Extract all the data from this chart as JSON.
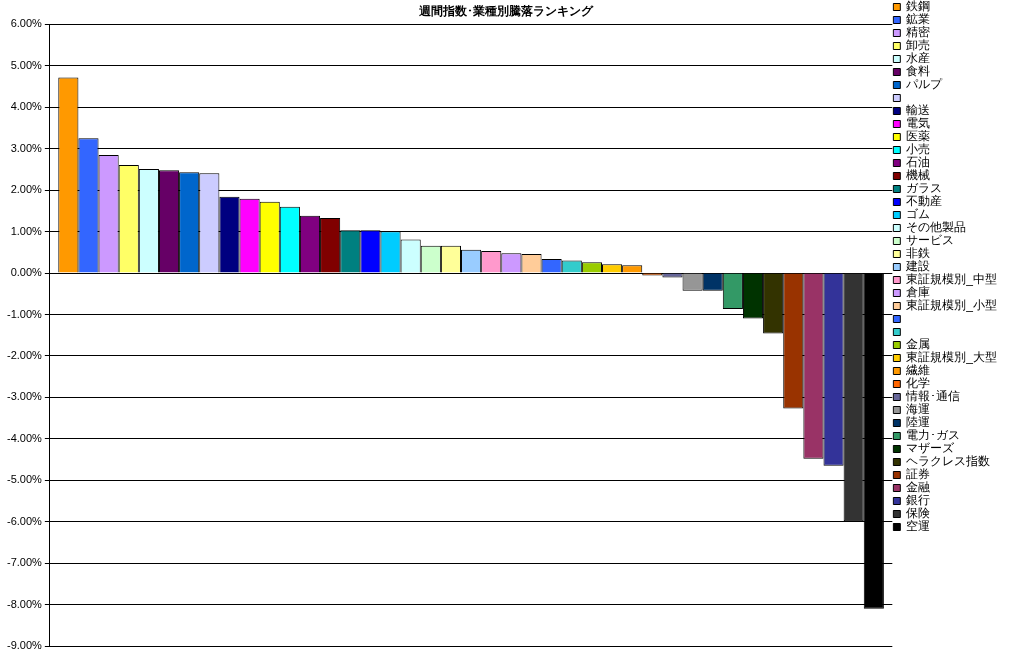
{
  "chart_data": {
    "type": "bar",
    "title": "週間指数･業種別騰落ランキング",
    "categories": [
      null
    ],
    "ylim": [
      -9,
      6
    ],
    "yticks": [
      {
        "value": -9,
        "label": "-9.00%"
      },
      {
        "value": -8,
        "label": "-8.00%"
      },
      {
        "value": -7,
        "label": "-7.00%"
      },
      {
        "value": -6,
        "label": "-6.00%"
      },
      {
        "value": -5,
        "label": "-5.00%"
      },
      {
        "value": -4,
        "label": "-4.00%"
      },
      {
        "value": -3,
        "label": "-3.00%"
      },
      {
        "value": -2,
        "label": "-2.00%"
      },
      {
        "value": -1,
        "label": "-1.00%"
      },
      {
        "value": 0,
        "label": "0.00%"
      },
      {
        "value": 1,
        "label": "1.00%"
      },
      {
        "value": 2,
        "label": "2.00%"
      },
      {
        "value": 3,
        "label": "3.00%"
      },
      {
        "value": 4,
        "label": "4.00%"
      },
      {
        "value": 5,
        "label": "5.00%"
      },
      {
        "value": 6,
        "label": "6.00%"
      }
    ],
    "grid": "y",
    "legend": "right",
    "series": [
      {
        "name": "鉄鋼",
        "color": "#ff9900",
        "values": [
          4.72
        ]
      },
      {
        "name": "鉱業",
        "color": "#3366ff",
        "values": [
          3.25
        ]
      },
      {
        "name": "精密",
        "color": "#cc99ff",
        "values": [
          2.85
        ]
      },
      {
        "name": "卸売",
        "color": "#ffff66",
        "values": [
          2.61
        ]
      },
      {
        "name": "水産",
        "color": "#ccffff",
        "values": [
          2.51
        ]
      },
      {
        "name": "食料",
        "color": "#660066",
        "values": [
          2.48
        ]
      },
      {
        "name": "パルプ",
        "color": "#0066cc",
        "values": [
          2.43
        ]
      },
      {
        "color": "#ccccff",
        "values": [
          2.41
        ]
      },
      {
        "name": "輸送",
        "color": "#000080",
        "values": [
          1.84
        ]
      },
      {
        "name": "電気",
        "color": "#ff00ff",
        "values": [
          1.79
        ]
      },
      {
        "name": "医薬",
        "color": "#ffff00",
        "values": [
          1.72
        ]
      },
      {
        "name": "小売",
        "color": "#00ffff",
        "values": [
          1.6
        ]
      },
      {
        "name": "石油",
        "color": "#800080",
        "values": [
          1.38
        ]
      },
      {
        "name": "機械",
        "color": "#800000",
        "values": [
          1.33
        ]
      },
      {
        "name": "ガラス",
        "color": "#008080",
        "values": [
          1.03
        ]
      },
      {
        "name": "不動産",
        "color": "#0000ff",
        "values": [
          1.03
        ]
      },
      {
        "name": "ゴム",
        "color": "#00ccff",
        "values": [
          1.01
        ]
      },
      {
        "name": "その他製品",
        "color": "#ccffff",
        "values": [
          0.81
        ]
      },
      {
        "name": "サービス",
        "color": "#ccffcc",
        "values": [
          0.66
        ]
      },
      {
        "name": "非鉄",
        "color": "#ffff99",
        "values": [
          0.66
        ]
      },
      {
        "name": "建設",
        "color": "#99ccff",
        "values": [
          0.56
        ]
      },
      {
        "name": "東証規模別_中型",
        "color": "#ff99cc",
        "values": [
          0.53
        ]
      },
      {
        "name": "倉庫",
        "color": "#cc99ff",
        "values": [
          0.48
        ]
      },
      {
        "name": "東証規模別_小型",
        "color": "#ffcc99",
        "values": [
          0.46
        ]
      },
      {
        "color": "#3366ff",
        "values": [
          0.34
        ]
      },
      {
        "color": "#33cccc",
        "values": [
          0.3
        ]
      },
      {
        "name": "金属",
        "color": "#99cc00",
        "values": [
          0.26
        ]
      },
      {
        "name": "東証規模別_大型",
        "color": "#ffcc00",
        "values": [
          0.21
        ]
      },
      {
        "name": "繊維",
        "color": "#ff9900",
        "values": [
          0.19
        ]
      },
      {
        "name": "化学",
        "color": "#ff6600",
        "values": [
          -0.06
        ]
      },
      {
        "name": "情報･通信",
        "color": "#666699",
        "values": [
          -0.11
        ]
      },
      {
        "name": "海運",
        "color": "#969696",
        "values": [
          -0.43
        ]
      },
      {
        "name": "陸運",
        "color": "#003366",
        "values": [
          -0.43
        ]
      },
      {
        "name": "電力･ガス",
        "color": "#339966",
        "values": [
          -0.87
        ]
      },
      {
        "name": "マザーズ",
        "color": "#003300",
        "values": [
          -1.1
        ]
      },
      {
        "name": "ヘラクレス指数",
        "color": "#333300",
        "values": [
          -1.46
        ]
      },
      {
        "name": "証券",
        "color": "#993300",
        "values": [
          -3.27
        ]
      },
      {
        "name": "金融",
        "color": "#993366",
        "values": [
          -4.48
        ]
      },
      {
        "name": "銀行",
        "color": "#333399",
        "values": [
          -4.65
        ]
      },
      {
        "name": "保険",
        "color": "#333333",
        "values": [
          -5.99
        ]
      },
      {
        "name": "空運",
        "color": "#000000",
        "values": [
          -8.1
        ]
      }
    ]
  }
}
